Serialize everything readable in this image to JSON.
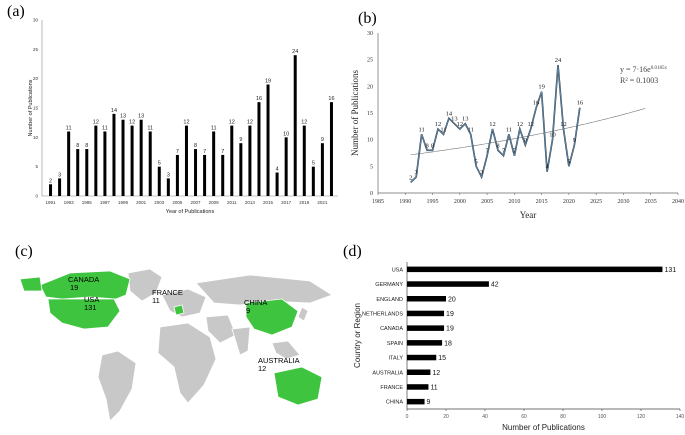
{
  "panels": {
    "a": "(a)",
    "b": "(b)",
    "c": "(c)",
    "d": "(d)"
  },
  "chart_data": [
    {
      "type": "bar",
      "panel": "a",
      "xlabel": "Year of Publications",
      "ylabel": "Number of Publications",
      "ylim": [
        0,
        30
      ],
      "yticks": [
        0,
        5,
        10,
        15,
        20,
        25,
        30
      ],
      "categories": [
        "1991",
        "1992",
        "1993",
        "1994",
        "1995",
        "1996",
        "1997",
        "1998",
        "1999",
        "2000",
        "2001",
        "2002",
        "2003",
        "2004",
        "2005",
        "2006",
        "2007",
        "2008",
        "2009",
        "2010",
        "2011",
        "2012",
        "2013",
        "2014",
        "2015",
        "2016",
        "2017",
        "2018",
        "2019",
        "2020",
        "2021",
        "2022"
      ],
      "xtick_labels": [
        "1991",
        "1993",
        "1995",
        "1997",
        "1999",
        "2001",
        "2003",
        "2005",
        "2007",
        "2009",
        "2011",
        "2013",
        "2015",
        "2017",
        "2019",
        "2021"
      ],
      "values": [
        2,
        3,
        11,
        8,
        8,
        12,
        11,
        14,
        13,
        12,
        13,
        11,
        5,
        3,
        7,
        12,
        8,
        7,
        11,
        7,
        12,
        9,
        12,
        16,
        19,
        4,
        10,
        24,
        12,
        5,
        9,
        16
      ],
      "color": "#000000"
    },
    {
      "type": "line",
      "panel": "b",
      "xlabel": "Year",
      "ylabel": "Number of Publications",
      "xlim": [
        1985,
        2040
      ],
      "ylim": [
        0,
        30
      ],
      "xticks": [
        1985,
        1990,
        1995,
        2000,
        2005,
        2010,
        2015,
        2020,
        2025,
        2030,
        2035,
        2040
      ],
      "yticks": [
        0,
        5,
        10,
        15,
        20,
        25,
        30
      ],
      "x": [
        1991,
        1992,
        1993,
        1994,
        1995,
        1996,
        1997,
        1998,
        1999,
        2000,
        2001,
        2002,
        2003,
        2004,
        2005,
        2006,
        2007,
        2008,
        2009,
        2010,
        2011,
        2012,
        2013,
        2014,
        2015,
        2016,
        2017,
        2018,
        2019,
        2020,
        2021,
        2022
      ],
      "y": [
        2,
        3,
        11,
        8,
        8,
        12,
        11,
        14,
        13,
        12,
        13,
        11,
        5,
        3,
        7,
        12,
        8,
        7,
        11,
        7,
        12,
        9,
        12,
        16,
        19,
        4,
        10,
        24,
        12,
        5,
        9,
        16
      ],
      "trend": {
        "equation": "y = 7·16e",
        "exponent": "0.0185x",
        "r2": "R² = 0.1003",
        "a": 7.16,
        "b": 0.0185,
        "x0": 1991,
        "x1": 2034
      },
      "line_color": "#5b8fb9"
    },
    {
      "type": "bar",
      "panel": "d",
      "orientation": "horizontal",
      "xlabel": "Number of Publications",
      "ylabel": "Country or Region",
      "xlim": [
        0,
        140
      ],
      "xticks": [
        0,
        20,
        40,
        60,
        80,
        100,
        120,
        140
      ],
      "categories": [
        "USA",
        "GERMANY",
        "ENGLAND",
        "NETHERLANDS",
        "CANADA",
        "SPAIN",
        "ITALY",
        "AUSTRALIA",
        "FRANCE",
        "CHINA"
      ],
      "values": [
        131,
        42,
        20,
        19,
        19,
        18,
        15,
        12,
        11,
        9
      ],
      "color": "#000000"
    }
  ],
  "map": {
    "land_color": "#c8c8c8",
    "highlight_color": "#3fc43f",
    "labels": [
      {
        "name": "CANADA",
        "value": "19"
      },
      {
        "name": "USA",
        "value": "131"
      },
      {
        "name": "FRANCE",
        "value": "11"
      },
      {
        "name": "CHINA",
        "value": "9"
      },
      {
        "name": "AUSTRALIA",
        "value": "12"
      }
    ]
  }
}
